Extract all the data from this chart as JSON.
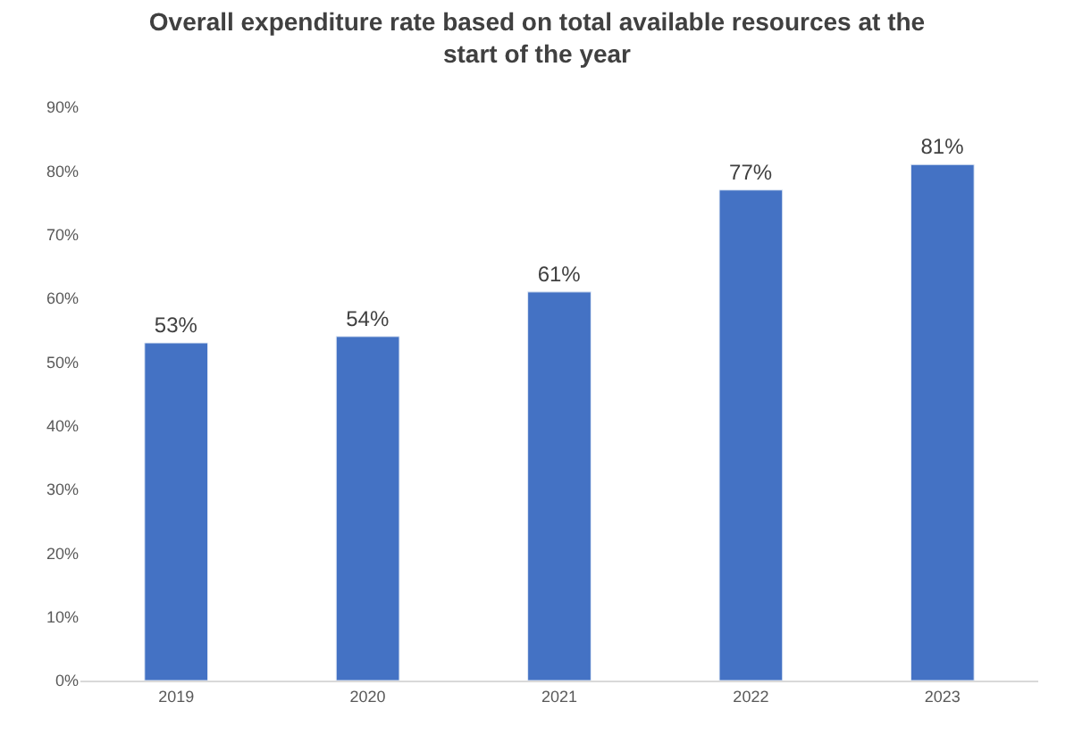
{
  "chart_data": {
    "type": "bar",
    "title": "Overall expenditure rate based on total available resources at the start of the year",
    "categories": [
      "2019",
      "2020",
      "2021",
      "2022",
      "2023"
    ],
    "values": [
      53,
      54,
      61,
      77,
      81
    ],
    "value_labels": [
      "53%",
      "54%",
      "61%",
      "77%",
      "81%"
    ],
    "color": "#4472c4",
    "ylim": [
      0,
      90
    ],
    "yticks": [
      {
        "value": 0,
        "label": "0%"
      },
      {
        "value": 10,
        "label": "10%"
      },
      {
        "value": 20,
        "label": "20%"
      },
      {
        "value": 30,
        "label": "30%"
      },
      {
        "value": 40,
        "label": "40%"
      },
      {
        "value": 50,
        "label": "50%"
      },
      {
        "value": 60,
        "label": "60%"
      },
      {
        "value": 70,
        "label": "70%"
      },
      {
        "value": 80,
        "label": "80%"
      },
      {
        "value": 90,
        "label": "90%"
      }
    ],
    "grid": false,
    "legend": false
  }
}
